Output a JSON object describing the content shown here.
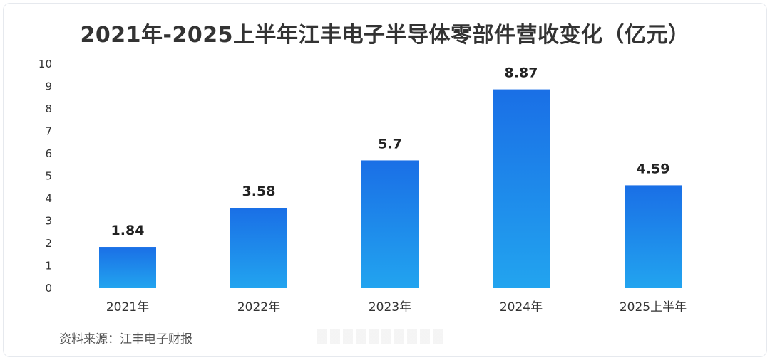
{
  "chart_data": {
    "type": "bar",
    "title": "2021年-2025上半年江丰电子半导体零部件营收变化（亿元）",
    "categories": [
      "2021年",
      "2022年",
      "2023年",
      "2024年",
      "2025上半年"
    ],
    "values": [
      1.84,
      3.58,
      5.7,
      8.87,
      4.59
    ],
    "value_labels": [
      "1.84",
      "3.58",
      "5.7",
      "8.87",
      "4.59"
    ],
    "ylim": [
      0,
      10
    ],
    "yticks": [
      0,
      1,
      2,
      3,
      4,
      5,
      6,
      7,
      8,
      9,
      10
    ],
    "grid": false,
    "bar_color_top": "#1a6fe6",
    "bar_color_bottom": "#22a4ef"
  },
  "source": "资料来源：江丰电子财报"
}
